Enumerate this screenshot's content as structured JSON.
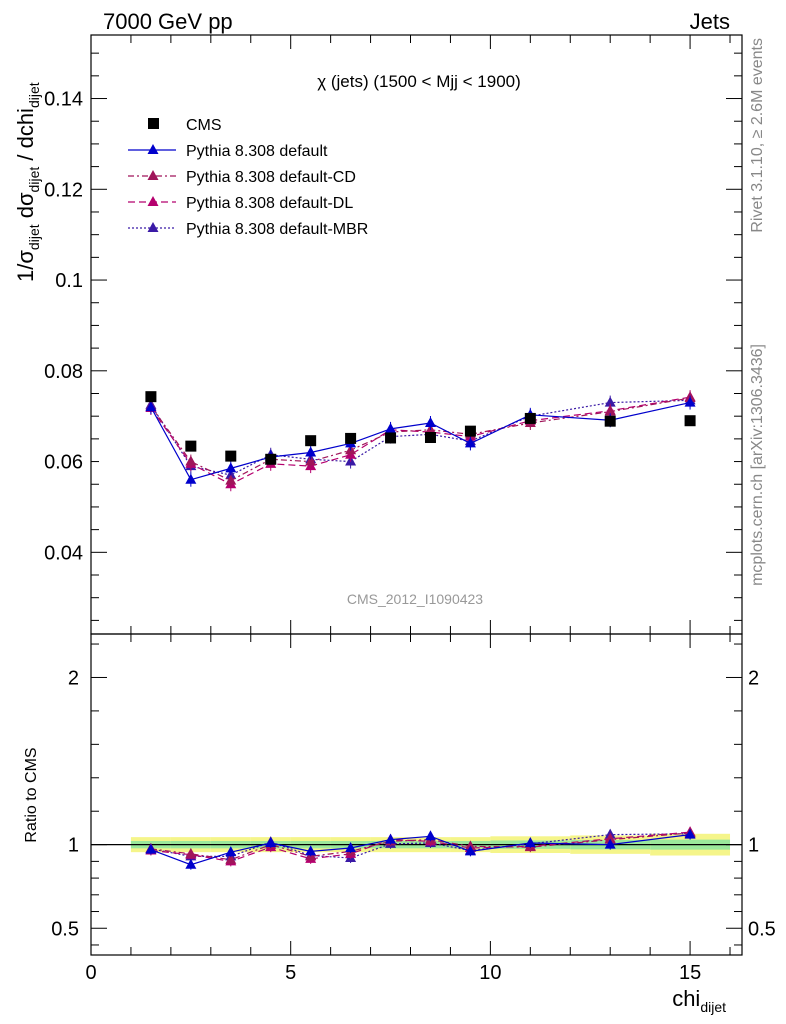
{
  "header": {
    "left": "7000 GeV pp",
    "right": "Jets"
  },
  "side_labels": {
    "rivet": "Rivet 3.1.10, ≥ 2.6M events",
    "mcplots": "mcplots.cern.ch [arXiv:1306.3436]"
  },
  "watermark": "CMS_2012_I1090423",
  "colors": {
    "cms": "#000000",
    "default": "#0000cc",
    "default_cd": "#a0155a",
    "default_dl": "#b5006e",
    "default_mbr": "#3a1aa6",
    "band_yellow": "#f5f58a",
    "band_green": "#9be89b"
  },
  "chart_data": [
    {
      "type": "scatter",
      "panel": "main",
      "title": "χ (jets) (1500 < Mjj < 1900)",
      "ylabel": "1/σ_dijet dσ_dijet / dchi_dijet",
      "xlabel": "",
      "xlim": [
        0,
        16.3
      ],
      "ylim": [
        0.022,
        0.154
      ],
      "yticks": [
        0.04,
        0.06,
        0.08,
        0.1,
        0.12,
        0.14
      ],
      "ytick_labels": [
        "0.04",
        "0.06",
        "0.08",
        "0.1",
        "0.12",
        "0.14"
      ],
      "legend_position": "top-left",
      "x": [
        1.5,
        2.5,
        3.5,
        4.5,
        5.5,
        6.5,
        7.5,
        8.5,
        9.5,
        11,
        13,
        15
      ],
      "series": [
        {
          "name": "CMS",
          "marker": "square",
          "line": "none",
          "values": [
            0.0743,
            0.0634,
            0.0612,
            0.0605,
            0.0646,
            0.0651,
            0.0652,
            0.0653,
            0.0667,
            0.0695,
            0.0689,
            0.069
          ]
        },
        {
          "name": "Pythia 8.308 default",
          "marker": "triangle",
          "line": "solid",
          "values": [
            0.072,
            0.056,
            0.0585,
            0.061,
            0.062,
            0.064,
            0.0672,
            0.0685,
            0.064,
            0.0703,
            0.0691,
            0.073
          ]
        },
        {
          "name": "Pythia 8.308 default-CD",
          "marker": "triangle",
          "line": "dashdot",
          "values": [
            0.0722,
            0.06,
            0.0558,
            0.0605,
            0.06,
            0.0625,
            0.0665,
            0.067,
            0.066,
            0.0685,
            0.071,
            0.074
          ]
        },
        {
          "name": "Pythia 8.308 default-DL",
          "marker": "triangle",
          "line": "dashed",
          "values": [
            0.0718,
            0.0595,
            0.055,
            0.0595,
            0.059,
            0.0615,
            0.067,
            0.0665,
            0.0655,
            0.069,
            0.0712,
            0.0742
          ]
        },
        {
          "name": "Pythia 8.308 default-MBR",
          "marker": "triangle",
          "line": "dotted",
          "values": [
            0.0725,
            0.059,
            0.057,
            0.0615,
            0.0605,
            0.06,
            0.0655,
            0.066,
            0.0645,
            0.07,
            0.073,
            0.0735
          ]
        }
      ]
    },
    {
      "type": "scatter",
      "panel": "ratio",
      "ylabel": "Ratio to CMS",
      "xlabel": "chi_dijet",
      "xlim": [
        0,
        16.3
      ],
      "ylim": [
        0.34,
        2.26
      ],
      "yticks": [
        0.5,
        1,
        2
      ],
      "ytick_labels": [
        "0.5",
        "1",
        "2"
      ],
      "xticks": [
        0,
        5,
        10,
        15
      ],
      "xtick_labels": [
        "0",
        "5",
        "10",
        "15"
      ],
      "x": [
        1.5,
        2.5,
        3.5,
        4.5,
        5.5,
        6.5,
        7.5,
        8.5,
        9.5,
        11,
        13,
        15
      ],
      "band_bins": [
        [
          1,
          2
        ],
        [
          2,
          3
        ],
        [
          3,
          4
        ],
        [
          4,
          5
        ],
        [
          5,
          6
        ],
        [
          6,
          7
        ],
        [
          7,
          8
        ],
        [
          8,
          9
        ],
        [
          9,
          10
        ],
        [
          10,
          12
        ],
        [
          12,
          14
        ],
        [
          14,
          16
        ]
      ],
      "band_outer": [
        0.045,
        0.045,
        0.045,
        0.045,
        0.045,
        0.045,
        0.045,
        0.045,
        0.045,
        0.05,
        0.055,
        0.065
      ],
      "band_inner": [
        0.022,
        0.022,
        0.022,
        0.022,
        0.022,
        0.022,
        0.022,
        0.022,
        0.022,
        0.025,
        0.028,
        0.03
      ],
      "series": [
        {
          "name": "Pythia 8.308 default",
          "values": [
            0.97,
            0.88,
            0.955,
            1.01,
            0.96,
            0.98,
            1.03,
            1.05,
            0.96,
            1.01,
            1.0,
            1.06
          ]
        },
        {
          "name": "Pythia 8.308 default-CD",
          "values": [
            0.975,
            0.945,
            0.91,
            1.0,
            0.93,
            0.96,
            1.02,
            1.03,
            0.99,
            0.985,
            1.03,
            1.07
          ]
        },
        {
          "name": "Pythia 8.308 default-DL",
          "values": [
            0.965,
            0.94,
            0.9,
            0.985,
            0.915,
            0.945,
            1.03,
            1.02,
            0.98,
            0.99,
            1.035,
            1.075
          ]
        },
        {
          "name": "Pythia 8.308 default-MBR",
          "values": [
            0.975,
            0.93,
            0.93,
            1.015,
            0.935,
            0.92,
            1.005,
            1.01,
            0.965,
            1.005,
            1.06,
            1.065
          ]
        }
      ]
    }
  ]
}
